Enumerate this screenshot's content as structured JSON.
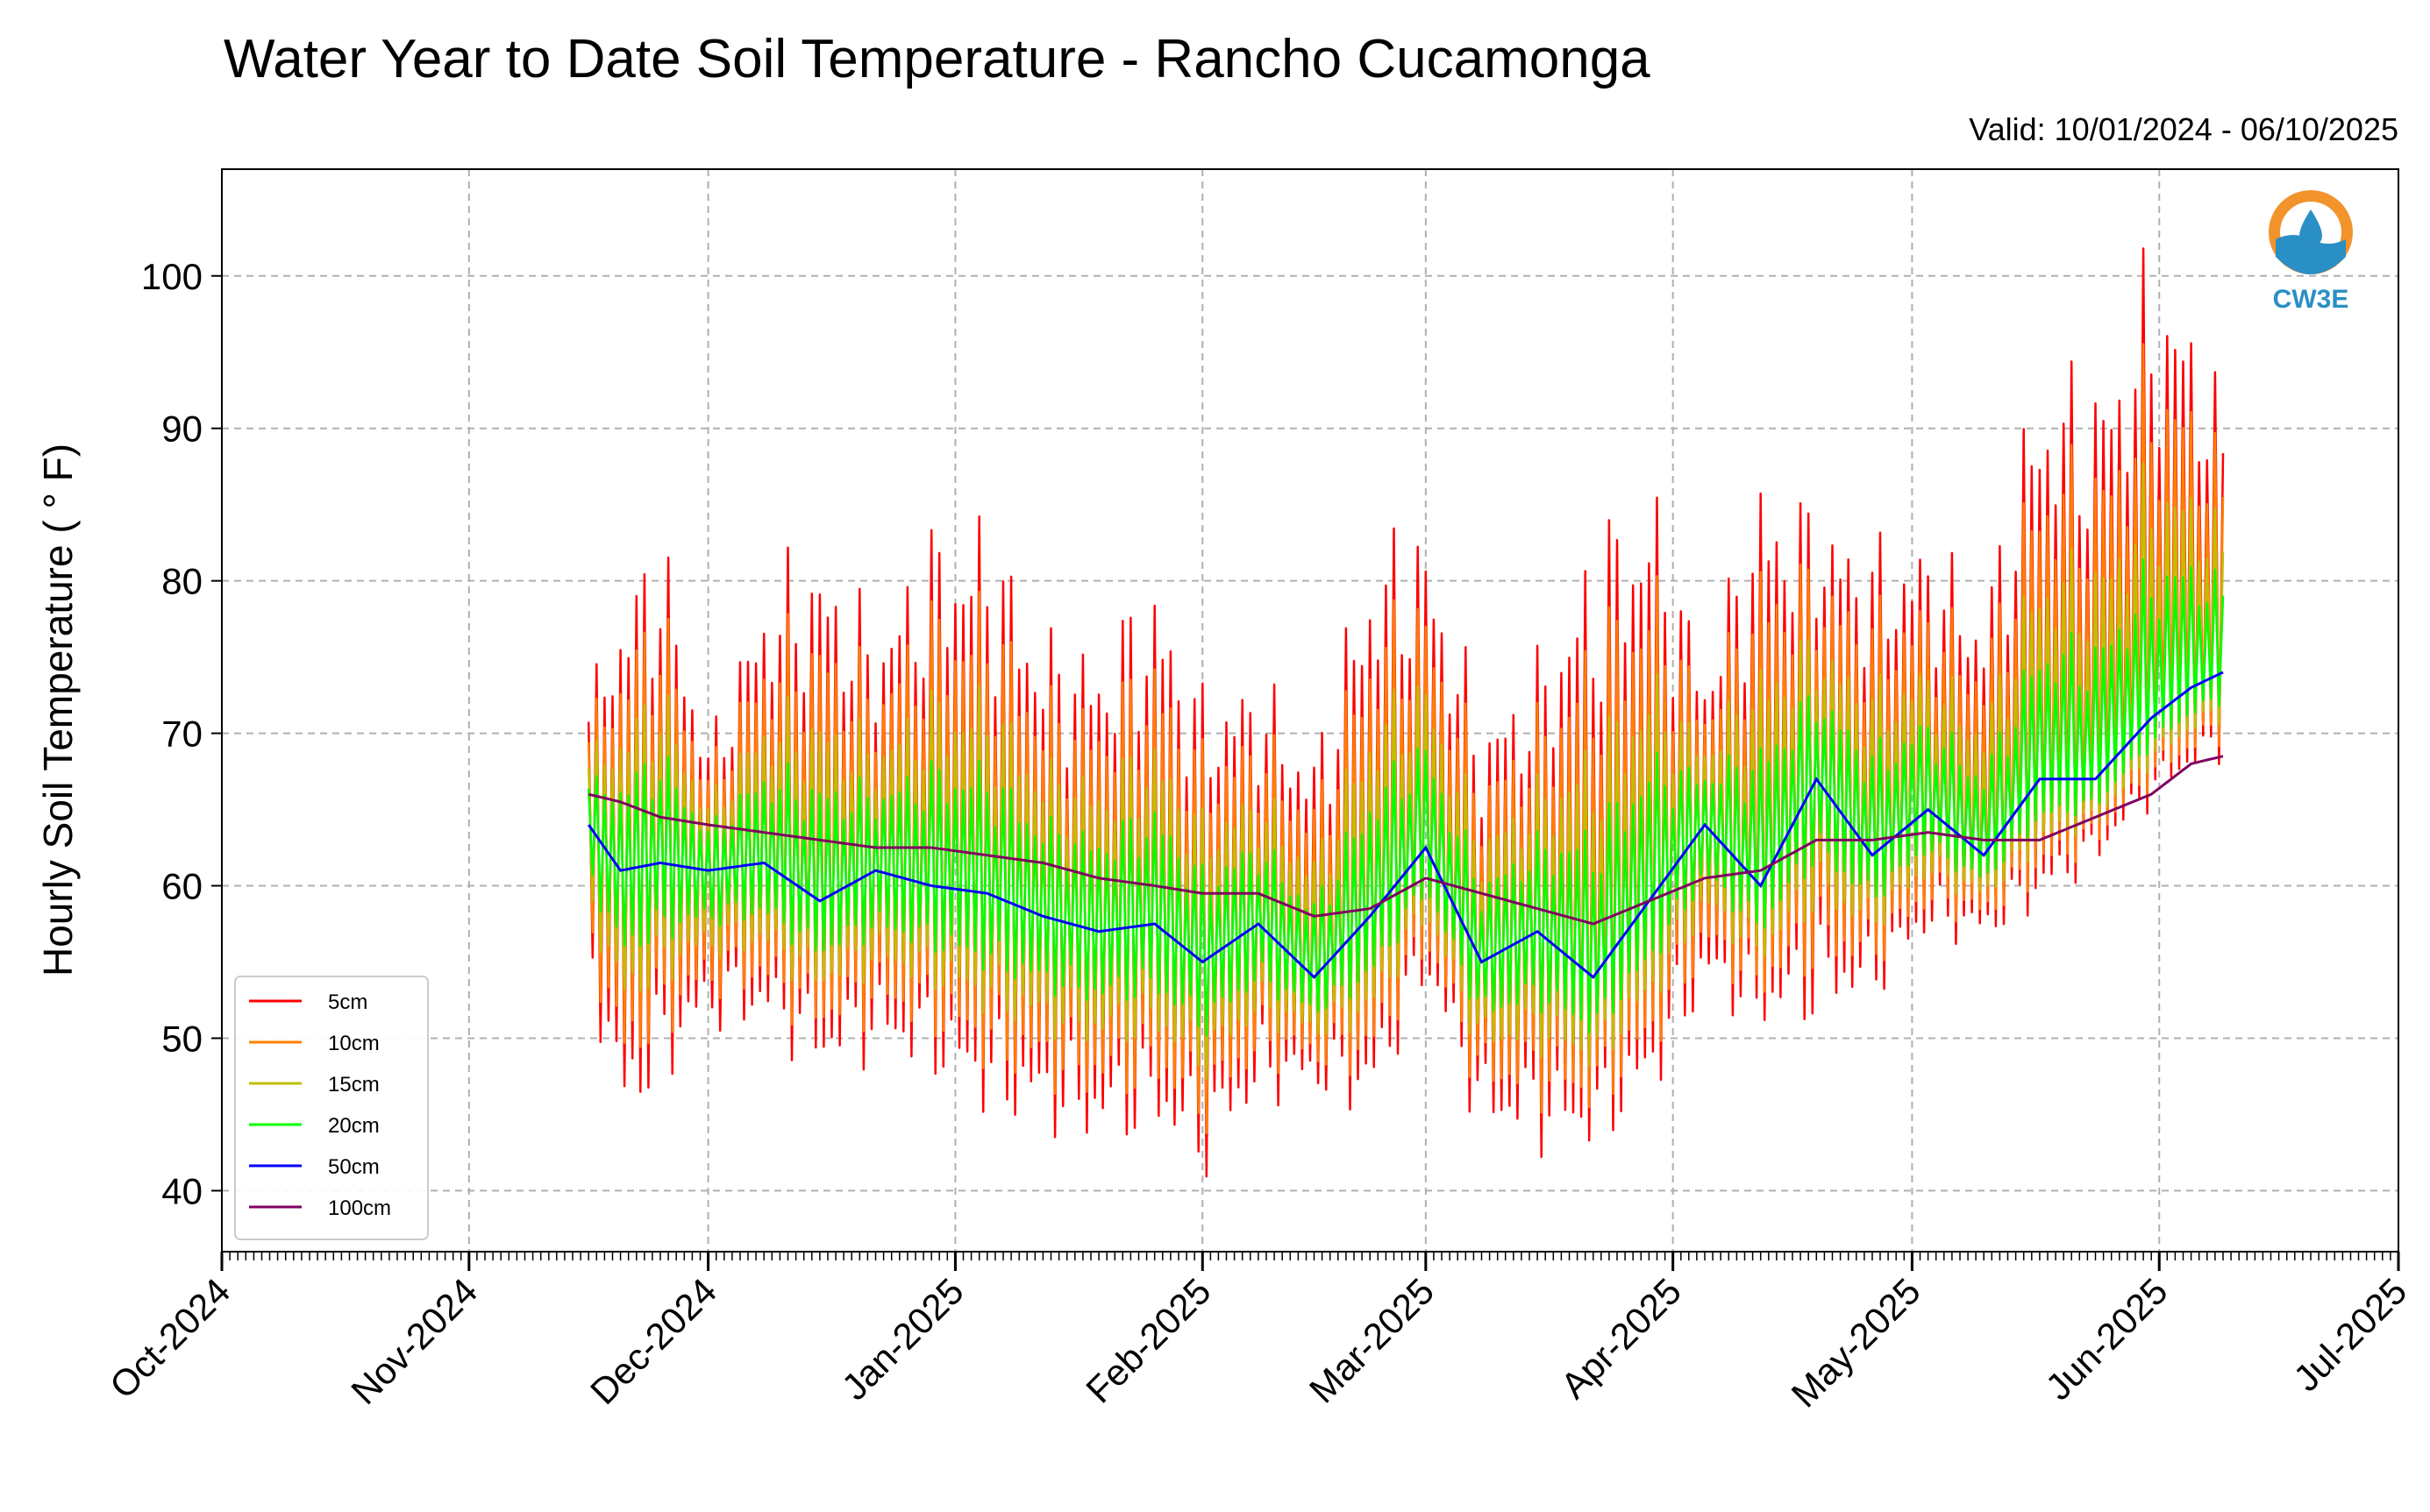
{
  "chart_data": {
    "type": "line",
    "title": "Water Year to Date Soil Temperature - Rancho Cucamonga",
    "subtitle": "Valid: 10/01/2024 - 06/10/2025",
    "xlabel": "",
    "ylabel": "Hourly Soil Temperature ( ° F)",
    "xlim": [
      "2024-10-01",
      "2025-07-01"
    ],
    "ylim": [
      36,
      107
    ],
    "yticks": [
      40,
      50,
      60,
      70,
      80,
      90,
      100
    ],
    "xticks": [
      "2024-10-01",
      "2024-11-01",
      "2024-12-01",
      "2025-01-01",
      "2025-02-01",
      "2025-03-01",
      "2025-04-01",
      "2025-05-01",
      "2025-06-01",
      "2025-07-01"
    ],
    "xtick_labels": [
      "Oct-2024",
      "Nov-2024",
      "Dec-2024",
      "Jan-2025",
      "Feb-2025",
      "Mar-2025",
      "Apr-2025",
      "May-2025",
      "Jun-2025",
      "Jul-2025"
    ],
    "grid": true,
    "legend_position": "lower-left",
    "logo_text": "CW3E",
    "data_start": "2024-11-16",
    "data_end": "2025-06-09",
    "daily_swing_note": "5cm series swings between daily max and daily min",
    "envelope_5cm": {
      "x": [
        "2024-11-16",
        "2024-11-20",
        "2024-11-25",
        "2024-12-01",
        "2024-12-08",
        "2024-12-15",
        "2024-12-22",
        "2024-12-29",
        "2025-01-05",
        "2025-01-12",
        "2025-01-19",
        "2025-01-26",
        "2025-02-01",
        "2025-02-08",
        "2025-02-15",
        "2025-02-22",
        "2025-03-01",
        "2025-03-08",
        "2025-03-15",
        "2025-03-22",
        "2025-03-29",
        "2025-04-05",
        "2025-04-12",
        "2025-04-19",
        "2025-04-26",
        "2025-05-03",
        "2025-05-10",
        "2025-05-17",
        "2025-05-24",
        "2025-05-31",
        "2025-06-05",
        "2025-06-09"
      ],
      "max": [
        73,
        80,
        85,
        70,
        81,
        84,
        78,
        85,
        86,
        78,
        77,
        82,
        74,
        75,
        70,
        84,
        85,
        72,
        76,
        85,
        89,
        75,
        89,
        86,
        84,
        84,
        80,
        96,
        95,
        103,
        100,
        92
      ],
      "min": [
        54,
        42,
        46,
        50,
        50,
        47,
        48,
        47,
        44,
        43,
        42,
        43,
        40,
        45,
        46,
        44,
        53,
        43,
        42,
        42,
        45,
        52,
        50,
        50,
        52,
        56,
        56,
        58,
        61,
        65,
        67,
        68
      ]
    },
    "series": [
      {
        "name": "5cm",
        "color": "#ff0000"
      },
      {
        "name": "10cm",
        "color": "#ff8000"
      },
      {
        "name": "15cm",
        "color": "#bfbf00"
      },
      {
        "name": "20cm",
        "color": "#00ff00"
      },
      {
        "name": "50cm",
        "color": "#0000ff",
        "x": [
          "2024-11-16",
          "2024-11-20",
          "2024-11-25",
          "2024-12-01",
          "2024-12-08",
          "2024-12-15",
          "2024-12-22",
          "2024-12-29",
          "2025-01-05",
          "2025-01-12",
          "2025-01-19",
          "2025-01-26",
          "2025-02-01",
          "2025-02-08",
          "2025-02-15",
          "2025-02-22",
          "2025-03-01",
          "2025-03-08",
          "2025-03-15",
          "2025-03-22",
          "2025-03-29",
          "2025-04-05",
          "2025-04-12",
          "2025-04-19",
          "2025-04-26",
          "2025-05-03",
          "2025-05-10",
          "2025-05-17",
          "2025-05-24",
          "2025-05-31",
          "2025-06-05",
          "2025-06-09"
        ],
        "values": [
          64,
          61,
          61.5,
          61,
          61.5,
          59,
          61,
          60,
          59.5,
          58,
          57,
          57.5,
          55,
          57.5,
          54,
          58,
          62.5,
          55,
          57,
          54,
          59,
          64,
          60,
          67,
          62,
          65,
          62,
          67,
          67,
          71,
          73,
          74
        ]
      },
      {
        "name": "100cm",
        "color": "#800060",
        "x": [
          "2024-11-16",
          "2024-11-20",
          "2024-11-25",
          "2024-12-01",
          "2024-12-08",
          "2024-12-15",
          "2024-12-22",
          "2024-12-29",
          "2025-01-05",
          "2025-01-12",
          "2025-01-19",
          "2025-01-26",
          "2025-02-01",
          "2025-02-08",
          "2025-02-15",
          "2025-02-22",
          "2025-03-01",
          "2025-03-08",
          "2025-03-15",
          "2025-03-22",
          "2025-03-29",
          "2025-04-05",
          "2025-04-12",
          "2025-04-19",
          "2025-04-26",
          "2025-05-03",
          "2025-05-10",
          "2025-05-17",
          "2025-05-24",
          "2025-05-31",
          "2025-06-05",
          "2025-06-09"
        ],
        "values": [
          66,
          65.5,
          64.5,
          64,
          63.5,
          63,
          62.5,
          62.5,
          62,
          61.5,
          60.5,
          60,
          59.5,
          59.5,
          58,
          58.5,
          60.5,
          59.5,
          58.5,
          57.5,
          59,
          60.5,
          61,
          63,
          63,
          63.5,
          63,
          63,
          64.5,
          66,
          68,
          68.5
        ]
      }
    ]
  }
}
